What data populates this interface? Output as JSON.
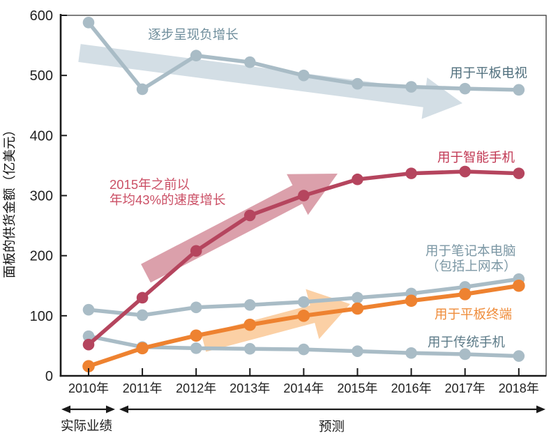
{
  "chart_data": {
    "type": "line",
    "title": "",
    "ylabel": "面板的供货金额（亿美元）",
    "xlabel": "",
    "categories": [
      "2010年",
      "2011年",
      "2012年",
      "2013年",
      "2014年",
      "2015年",
      "2016年",
      "2017年",
      "2018年"
    ],
    "yticks": [
      0,
      100,
      200,
      300,
      400,
      500,
      600
    ],
    "ylim": [
      0,
      600
    ],
    "grid": false,
    "legend_position": "inline-labels",
    "series": [
      {
        "name": "用于平板电视",
        "color": "#a9bcc6",
        "values": [
          588,
          477,
          533,
          522,
          500,
          486,
          481,
          478,
          476
        ]
      },
      {
        "name": "用于笔记本电脑（包括上网本）",
        "color": "#a9bcc6",
        "values": [
          110,
          101,
          114,
          118,
          123,
          130,
          137,
          148,
          161
        ]
      },
      {
        "name": "用于传统手机",
        "color": "#a9bcc6",
        "values": [
          66,
          48,
          46,
          45,
          44,
          41,
          38,
          36,
          33
        ]
      },
      {
        "name": "用于智能手机",
        "color": "#b5455e",
        "values": [
          52,
          130,
          208,
          267,
          300,
          327,
          337,
          340,
          337
        ]
      },
      {
        "name": "用于平板终端",
        "color": "#ee8230",
        "values": [
          16,
          46,
          67,
          85,
          100,
          112,
          125,
          136,
          150
        ]
      }
    ],
    "annotations": {
      "tv_trend": "逐步呈现负增长",
      "smartphone_trend_line1": "2015年之前以",
      "smartphone_trend_line2": "年均43%的速度增长",
      "label_tv": "用于平板电视",
      "label_smartphone": "用于智能手机",
      "label_notebook_line1": "用于笔记本电脑",
      "label_notebook_line2": "（包括上网本）",
      "label_tablet": "用于平板终端",
      "label_feature": "用于传统手机",
      "actual": "实际业绩",
      "forecast": "预测"
    },
    "colors": {
      "tv_label": "#51707e",
      "smartphone_label": "#c23a55",
      "notebook_label": "#7b97a4",
      "tablet_label": "#ef8c3a",
      "feature_label": "#5d7b88",
      "trend_blue": "#6f8e9c",
      "trend_red": "#cb5066",
      "axis": "#1a1a1a",
      "arrow_tv": "#d3dee5",
      "arrow_smartphone": "#dba0ab",
      "arrow_tablet": "#fbd0a5"
    }
  }
}
